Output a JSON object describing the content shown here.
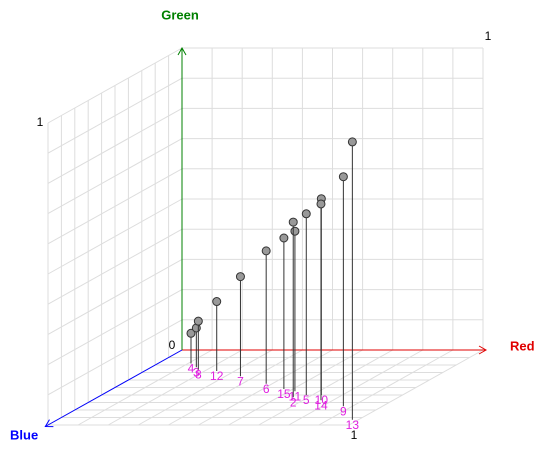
{
  "chart_data": {
    "type": "scatter3d",
    "axis_titles": {
      "x": "Red",
      "y": "Green",
      "z": "Blue"
    },
    "axis_colors": {
      "x": "#e00000",
      "y": "#008000",
      "z": "#0000ff"
    },
    "xlim": [
      0,
      1
    ],
    "ylim": [
      0,
      1
    ],
    "zlim": [
      0,
      1
    ],
    "xticks": [
      1
    ],
    "yticks": [
      0,
      1
    ],
    "zticks": [
      1
    ],
    "grid": true,
    "point_color": "#999999",
    "label_color": "#e020e0",
    "labels": [
      "4",
      "3",
      "8",
      "12",
      "7",
      "6",
      "15",
      "11",
      "2",
      "5",
      "10",
      "14",
      "9",
      "13"
    ],
    "x": [
      0.11,
      0.15,
      0.17,
      0.24,
      0.35,
      0.48,
      0.57,
      0.62,
      0.65,
      0.68,
      0.73,
      0.76,
      0.87,
      0.98
    ],
    "y": [
      0.1,
      0.13,
      0.16,
      0.23,
      0.33,
      0.44,
      0.5,
      0.53,
      0.58,
      0.6,
      0.65,
      0.65,
      0.76,
      0.92
    ],
    "z": [
      0.18,
      0.23,
      0.26,
      0.28,
      0.35,
      0.45,
      0.52,
      0.55,
      0.63,
      0.6,
      0.6,
      0.67,
      0.75,
      0.93
    ]
  }
}
